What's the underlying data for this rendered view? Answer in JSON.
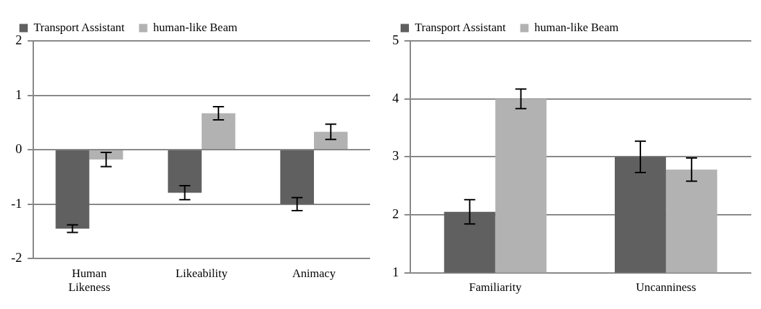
{
  "chart_data": [
    {
      "type": "bar",
      "categories": [
        "Human Likeness",
        "Likeability",
        "Animacy"
      ],
      "series": [
        {
          "name": "Transport Assistant",
          "color": "#606060",
          "values": [
            -1.45,
            -0.79,
            -1.0
          ],
          "errors": [
            0.07,
            0.13,
            0.12
          ]
        },
        {
          "name": "human-like Beam",
          "color": "#b2b2b2",
          "values": [
            -0.18,
            0.67,
            0.33
          ],
          "errors": [
            0.13,
            0.12,
            0.14
          ]
        }
      ],
      "ylim": [
        -2,
        2
      ],
      "yticks": [
        -2,
        -1,
        0,
        1,
        2
      ],
      "grid": "y",
      "legend": "top left"
    },
    {
      "type": "bar",
      "categories": [
        "Familiarity",
        "Uncanniness"
      ],
      "series": [
        {
          "name": "Transport Assistant",
          "color": "#606060",
          "values": [
            2.05,
            3.0
          ],
          "errors": [
            0.21,
            0.27
          ]
        },
        {
          "name": "human-like Beam",
          "color": "#b2b2b2",
          "values": [
            4.0,
            2.78
          ],
          "errors": [
            0.17,
            0.2
          ]
        }
      ],
      "ylim": [
        1,
        5
      ],
      "yticks": [
        1,
        2,
        3,
        4,
        5
      ],
      "grid": "y",
      "legend": "top left"
    }
  ]
}
